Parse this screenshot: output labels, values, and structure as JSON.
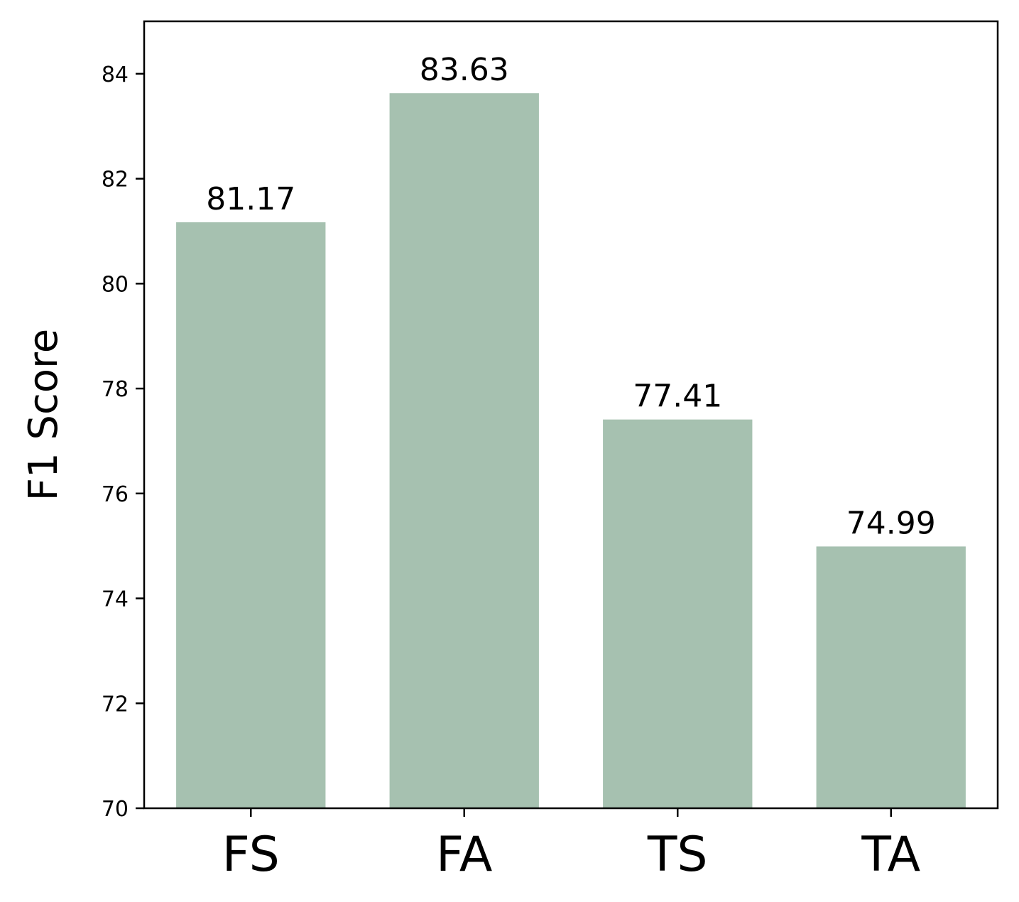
{
  "chart_data": {
    "type": "bar",
    "title": "",
    "xlabel": "",
    "ylabel": "F1 Score",
    "categories": [
      "FS",
      "FA",
      "TS",
      "TA"
    ],
    "values": [
      81.17,
      83.63,
      77.41,
      74.99
    ],
    "value_labels": [
      "81.17",
      "83.63",
      "77.41",
      "74.99"
    ],
    "ylim": [
      70,
      85
    ],
    "yticks": [
      70,
      72,
      74,
      76,
      78,
      80,
      82,
      84
    ],
    "grid": false,
    "legend": "none",
    "bar_color": "#a6c1b0"
  }
}
